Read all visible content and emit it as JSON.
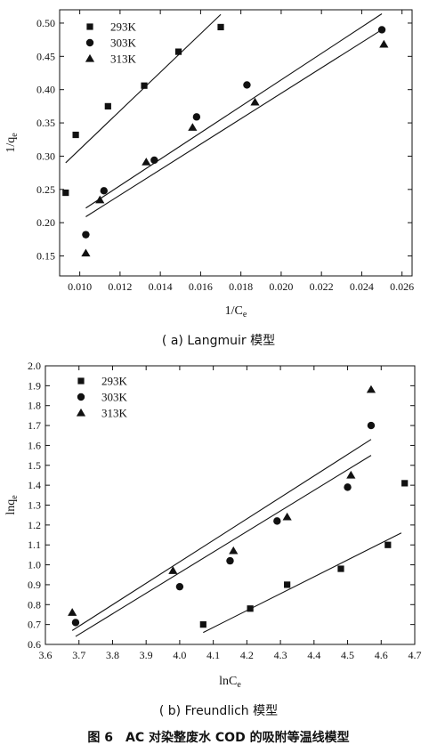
{
  "figure_title": "图 6　AC 对染整废水 COD 的吸附等温线模型",
  "chart_data": [
    {
      "type": "scatter",
      "caption": "( a) Langmuir 模型",
      "xlabel": "1/Ce",
      "ylabel": "1/qe",
      "xlim": [
        0.009,
        0.0265
      ],
      "ylim": [
        0.12,
        0.52
      ],
      "xticks": [
        0.01,
        0.012,
        0.014,
        0.016,
        0.018,
        0.02,
        0.022,
        0.024,
        0.026
      ],
      "yticks": [
        0.15,
        0.2,
        0.25,
        0.3,
        0.35,
        0.4,
        0.45,
        0.5
      ],
      "xtick_decimals": 3,
      "ytick_decimals": 2,
      "grid": false,
      "legend": "top-left",
      "series": [
        {
          "name": "293K",
          "marker": "square",
          "points": [
            [
              0.0093,
              0.245
            ],
            [
              0.0098,
              0.332
            ],
            [
              0.0114,
              0.375
            ],
            [
              0.0132,
              0.406
            ],
            [
              0.0149,
              0.457
            ],
            [
              0.017,
              0.494
            ]
          ],
          "fit": [
            [
              0.0093,
              0.29
            ],
            [
              0.017,
              0.513
            ]
          ]
        },
        {
          "name": "303K",
          "marker": "circle",
          "points": [
            [
              0.0103,
              0.182
            ],
            [
              0.0112,
              0.248
            ],
            [
              0.0137,
              0.294
            ],
            [
              0.0158,
              0.359
            ],
            [
              0.0183,
              0.407
            ],
            [
              0.025,
              0.49
            ]
          ],
          "fit": [
            [
              0.0103,
              0.222
            ],
            [
              0.025,
              0.514
            ]
          ]
        },
        {
          "name": "313K",
          "marker": "triangle",
          "points": [
            [
              0.0103,
              0.154
            ],
            [
              0.011,
              0.234
            ],
            [
              0.0133,
              0.291
            ],
            [
              0.0156,
              0.343
            ],
            [
              0.0187,
              0.381
            ],
            [
              0.0251,
              0.468
            ]
          ],
          "fit": [
            [
              0.0103,
              0.209
            ],
            [
              0.0251,
              0.492
            ]
          ]
        }
      ]
    },
    {
      "type": "scatter",
      "caption": "( b) Freundlich 模型",
      "xlabel": "lnCe",
      "ylabel": "lnqe",
      "xlim": [
        3.6,
        4.7
      ],
      "ylim": [
        0.6,
        2.0
      ],
      "xticks": [
        3.6,
        3.7,
        3.8,
        3.9,
        4.0,
        4.1,
        4.2,
        4.3,
        4.4,
        4.5,
        4.6,
        4.7
      ],
      "yticks": [
        0.6,
        0.7,
        0.8,
        0.9,
        1.0,
        1.1,
        1.2,
        1.3,
        1.4,
        1.5,
        1.6,
        1.7,
        1.8,
        1.9,
        2.0
      ],
      "xtick_decimals": 1,
      "ytick_decimals": 1,
      "grid": false,
      "legend": "top-left",
      "series": [
        {
          "name": "293K",
          "marker": "square",
          "points": [
            [
              4.07,
              0.7
            ],
            [
              4.21,
              0.78
            ],
            [
              4.32,
              0.9
            ],
            [
              4.48,
              0.98
            ],
            [
              4.62,
              1.1
            ],
            [
              4.67,
              1.41
            ]
          ],
          "fit": [
            [
              4.07,
              0.66
            ],
            [
              4.66,
              1.16
            ]
          ]
        },
        {
          "name": "303K",
          "marker": "circle",
          "points": [
            [
              3.69,
              0.71
            ],
            [
              4.0,
              0.89
            ],
            [
              4.15,
              1.02
            ],
            [
              4.29,
              1.22
            ],
            [
              4.5,
              1.39
            ],
            [
              4.57,
              1.7
            ]
          ],
          "fit": [
            [
              3.69,
              0.64
            ],
            [
              4.57,
              1.55
            ]
          ]
        },
        {
          "name": "313K",
          "marker": "triangle",
          "points": [
            [
              3.68,
              0.76
            ],
            [
              3.98,
              0.97
            ],
            [
              4.16,
              1.07
            ],
            [
              4.32,
              1.24
            ],
            [
              4.51,
              1.45
            ],
            [
              4.57,
              1.88
            ]
          ],
          "fit": [
            [
              3.68,
              0.67
            ],
            [
              4.57,
              1.63
            ]
          ]
        }
      ]
    }
  ]
}
